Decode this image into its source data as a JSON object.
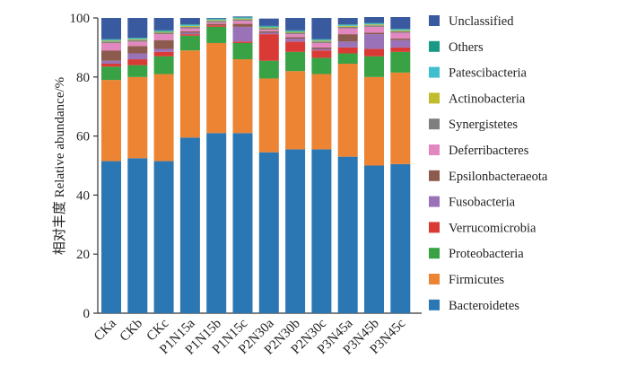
{
  "chart_data": {
    "type": "bar",
    "stacked": true,
    "ylabel": "相对丰度 Relative abundance/%",
    "ylim": [
      0,
      100
    ],
    "yticks": [
      0,
      20,
      40,
      60,
      80,
      100
    ],
    "grid": false,
    "legend_position": "right",
    "categories": [
      "CKa",
      "CKb",
      "CKc",
      "P1N15a",
      "P1N15b",
      "P1N15c",
      "P2N30a",
      "P2N30b",
      "P2N30c",
      "P3N45a",
      "P3N45b",
      "P3N45c"
    ],
    "series": [
      {
        "name": "Bacteroidetes",
        "color": "#2b77b4",
        "values": [
          51.5,
          52.5,
          51.5,
          59.5,
          61.0,
          61.0,
          54.5,
          55.5,
          55.5,
          53.0,
          50.0,
          50.5
        ]
      },
      {
        "name": "Firmicutes",
        "color": "#ec8434",
        "values": [
          27.5,
          27.5,
          29.5,
          29.5,
          30.5,
          25.0,
          25.0,
          26.5,
          25.5,
          31.5,
          30.0,
          31.0
        ]
      },
      {
        "name": "Proteobacteria",
        "color": "#39a245",
        "values": [
          4.5,
          4.0,
          6.0,
          5.0,
          5.5,
          5.5,
          6.0,
          6.5,
          5.5,
          3.5,
          7.0,
          7.0
        ]
      },
      {
        "name": "Verrucomicrobia",
        "color": "#d93a35",
        "values": [
          1.0,
          2.0,
          1.5,
          0.5,
          0.5,
          0.5,
          9.0,
          3.5,
          2.5,
          2.0,
          2.5,
          1.5
        ]
      },
      {
        "name": "Fusobacteria",
        "color": "#9a72b8",
        "values": [
          1.0,
          2.0,
          1.0,
          0.5,
          0.0,
          5.0,
          0.5,
          1.0,
          0.5,
          2.0,
          5.0,
          2.5
        ]
      },
      {
        "name": "Epsilonbacteraeota",
        "color": "#8d5a4e",
        "values": [
          3.5,
          2.5,
          3.0,
          0.5,
          0.5,
          1.0,
          0.5,
          0.5,
          0.5,
          2.5,
          0.5,
          0.5
        ]
      },
      {
        "name": "Deferribacteres",
        "color": "#e387c0",
        "values": [
          2.5,
          1.5,
          2.0,
          1.0,
          0.5,
          1.0,
          0.5,
          1.0,
          1.5,
          2.0,
          2.0,
          2.0
        ]
      },
      {
        "name": "Synergistetes",
        "color": "#7f7f7f",
        "values": [
          0.5,
          0.5,
          0.5,
          0.5,
          0.5,
          0.5,
          0.5,
          0.5,
          0.5,
          0.5,
          0.5,
          0.5
        ]
      },
      {
        "name": "Actinobacteria",
        "color": "#c1bc2e",
        "values": [
          0.3,
          0.3,
          0.3,
          0.3,
          0.3,
          0.3,
          0.3,
          0.3,
          0.3,
          0.3,
          0.3,
          0.3
        ]
      },
      {
        "name": "Patescibacteria",
        "color": "#3fbecf",
        "values": [
          0.3,
          0.3,
          0.3,
          0.3,
          0.3,
          0.3,
          0.3,
          0.3,
          0.3,
          0.3,
          0.3,
          0.3
        ]
      },
      {
        "name": "Others",
        "color": "#1a9a85",
        "values": [
          0.2,
          0.2,
          0.2,
          0.2,
          0.2,
          0.2,
          0.2,
          0.2,
          0.2,
          0.2,
          0.2,
          0.2
        ]
      },
      {
        "name": "Unclassified",
        "color": "#3a5aa0",
        "values": [
          7.2,
          6.7,
          4.2,
          2.2,
          0.2,
          0.2,
          2.5,
          4.2,
          7.2,
          2.2,
          2.0,
          4.0
        ]
      }
    ]
  }
}
